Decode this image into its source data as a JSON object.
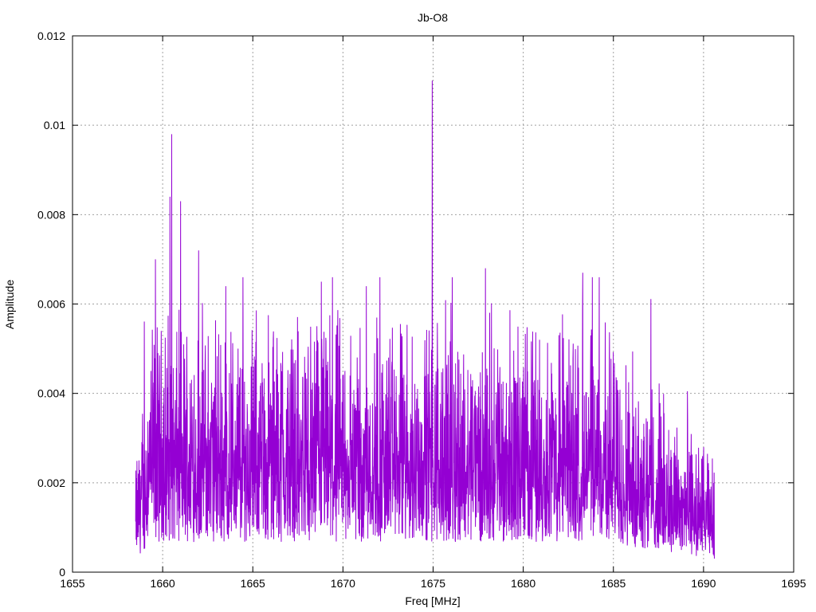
{
  "chart_data": {
    "type": "line",
    "title": "Jb-O8",
    "xlabel": "Freq [MHz]",
    "ylabel": "Amplitude",
    "xlim": [
      1655,
      1695
    ],
    "ylim": [
      0,
      0.012
    ],
    "x_ticks": [
      "1655",
      "1660",
      "1665",
      "1670",
      "1675",
      "1680",
      "1685",
      "1690",
      "1695"
    ],
    "y_ticks": [
      "0",
      "0.002",
      "0.004",
      "0.006",
      "0.008",
      "0.01",
      "0.012"
    ],
    "grid": true,
    "series": [
      {
        "color": "#9400d3",
        "x_range": [
          1658.5,
          1690.6
        ],
        "points_note": "dense noisy spectrum",
        "peaks": [
          {
            "x": 1659.6,
            "y": 0.007
          },
          {
            "x": 1660.5,
            "y": 0.0098
          },
          {
            "x": 1660.4,
            "y": 0.0084
          },
          {
            "x": 1661.0,
            "y": 0.0083
          },
          {
            "x": 1662.0,
            "y": 0.0072
          },
          {
            "x": 1663.5,
            "y": 0.0064
          },
          {
            "x": 1668.8,
            "y": 0.0065
          },
          {
            "x": 1671.3,
            "y": 0.0064
          },
          {
            "x": 1674.95,
            "y": 0.011
          },
          {
            "x": 1677.9,
            "y": 0.0068
          },
          {
            "x": 1683.3,
            "y": 0.0067
          }
        ],
        "baseline_mean": 0.0027,
        "baseline_tail_mean": 0.0012
      }
    ]
  }
}
